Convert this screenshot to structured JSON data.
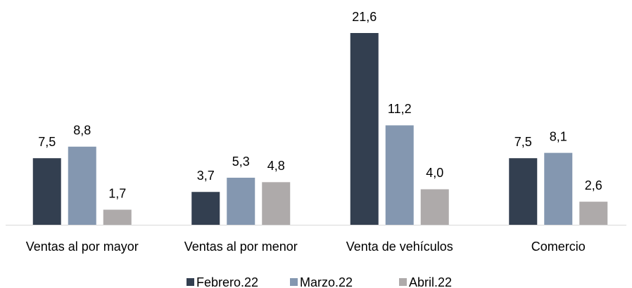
{
  "chart_data": {
    "type": "bar",
    "categories": [
      "Ventas al por mayor",
      "Ventas al por menor",
      "Venta de vehículos",
      "Comercio"
    ],
    "series": [
      {
        "name": "Febrero.22",
        "color": "#333f50",
        "values": [
          7.5,
          3.7,
          21.6,
          7.5
        ],
        "value_labels": [
          "7,5",
          "3,7",
          "21,6",
          "7,5"
        ]
      },
      {
        "name": "Marzo.22",
        "color": "#8497b0",
        "values": [
          8.8,
          5.3,
          11.2,
          8.1
        ],
        "value_labels": [
          "8,8",
          "5,3",
          "11,2",
          "8,1"
        ]
      },
      {
        "name": "Abril.22",
        "color": "#aeaaaa",
        "values": [
          1.7,
          4.8,
          4.0,
          2.6
        ],
        "value_labels": [
          "1,7",
          "4,8",
          "4,0",
          "2,6"
        ]
      }
    ],
    "legend": "bottom"
  }
}
